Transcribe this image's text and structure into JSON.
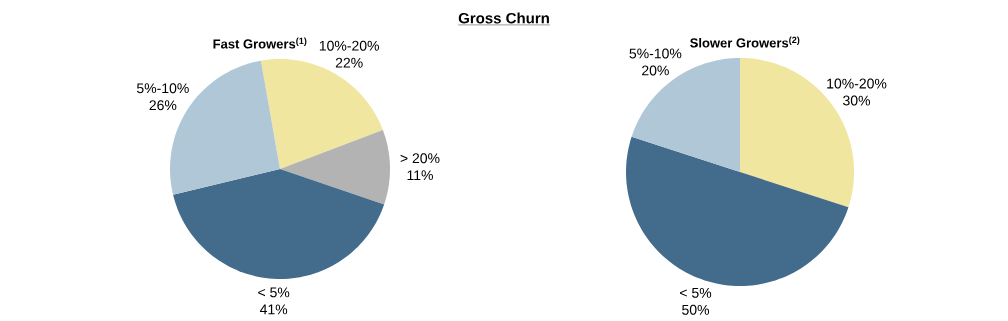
{
  "chart_data": [
    {
      "type": "other",
      "title": "Gross Churn"
    },
    {
      "type": "pie",
      "title": "Fast Growers$^{(1)}$",
      "categories": [
        "10%-20%",
        "> 20%",
        "< 5%",
        "5%-10%"
      ],
      "values": [
        22,
        11,
        41,
        26
      ],
      "value_labels": [
        "22%",
        "11%",
        "41%",
        "26%"
      ],
      "colors": [
        "#f0e6a0",
        "#b3b3b3",
        "#436b8c",
        "#b0c7d8"
      ]
    },
    {
      "type": "pie",
      "title": "Slower Growers$^{(2)}$",
      "categories": [
        "10%-20%",
        "< 5%",
        "5%-10%"
      ],
      "values": [
        30,
        50,
        20
      ],
      "value_labels": [
        "30%",
        "50%",
        "20%"
      ],
      "colors": [
        "#f0e6a0",
        "#436b8c",
        "#b0c7d8"
      ]
    }
  ]
}
